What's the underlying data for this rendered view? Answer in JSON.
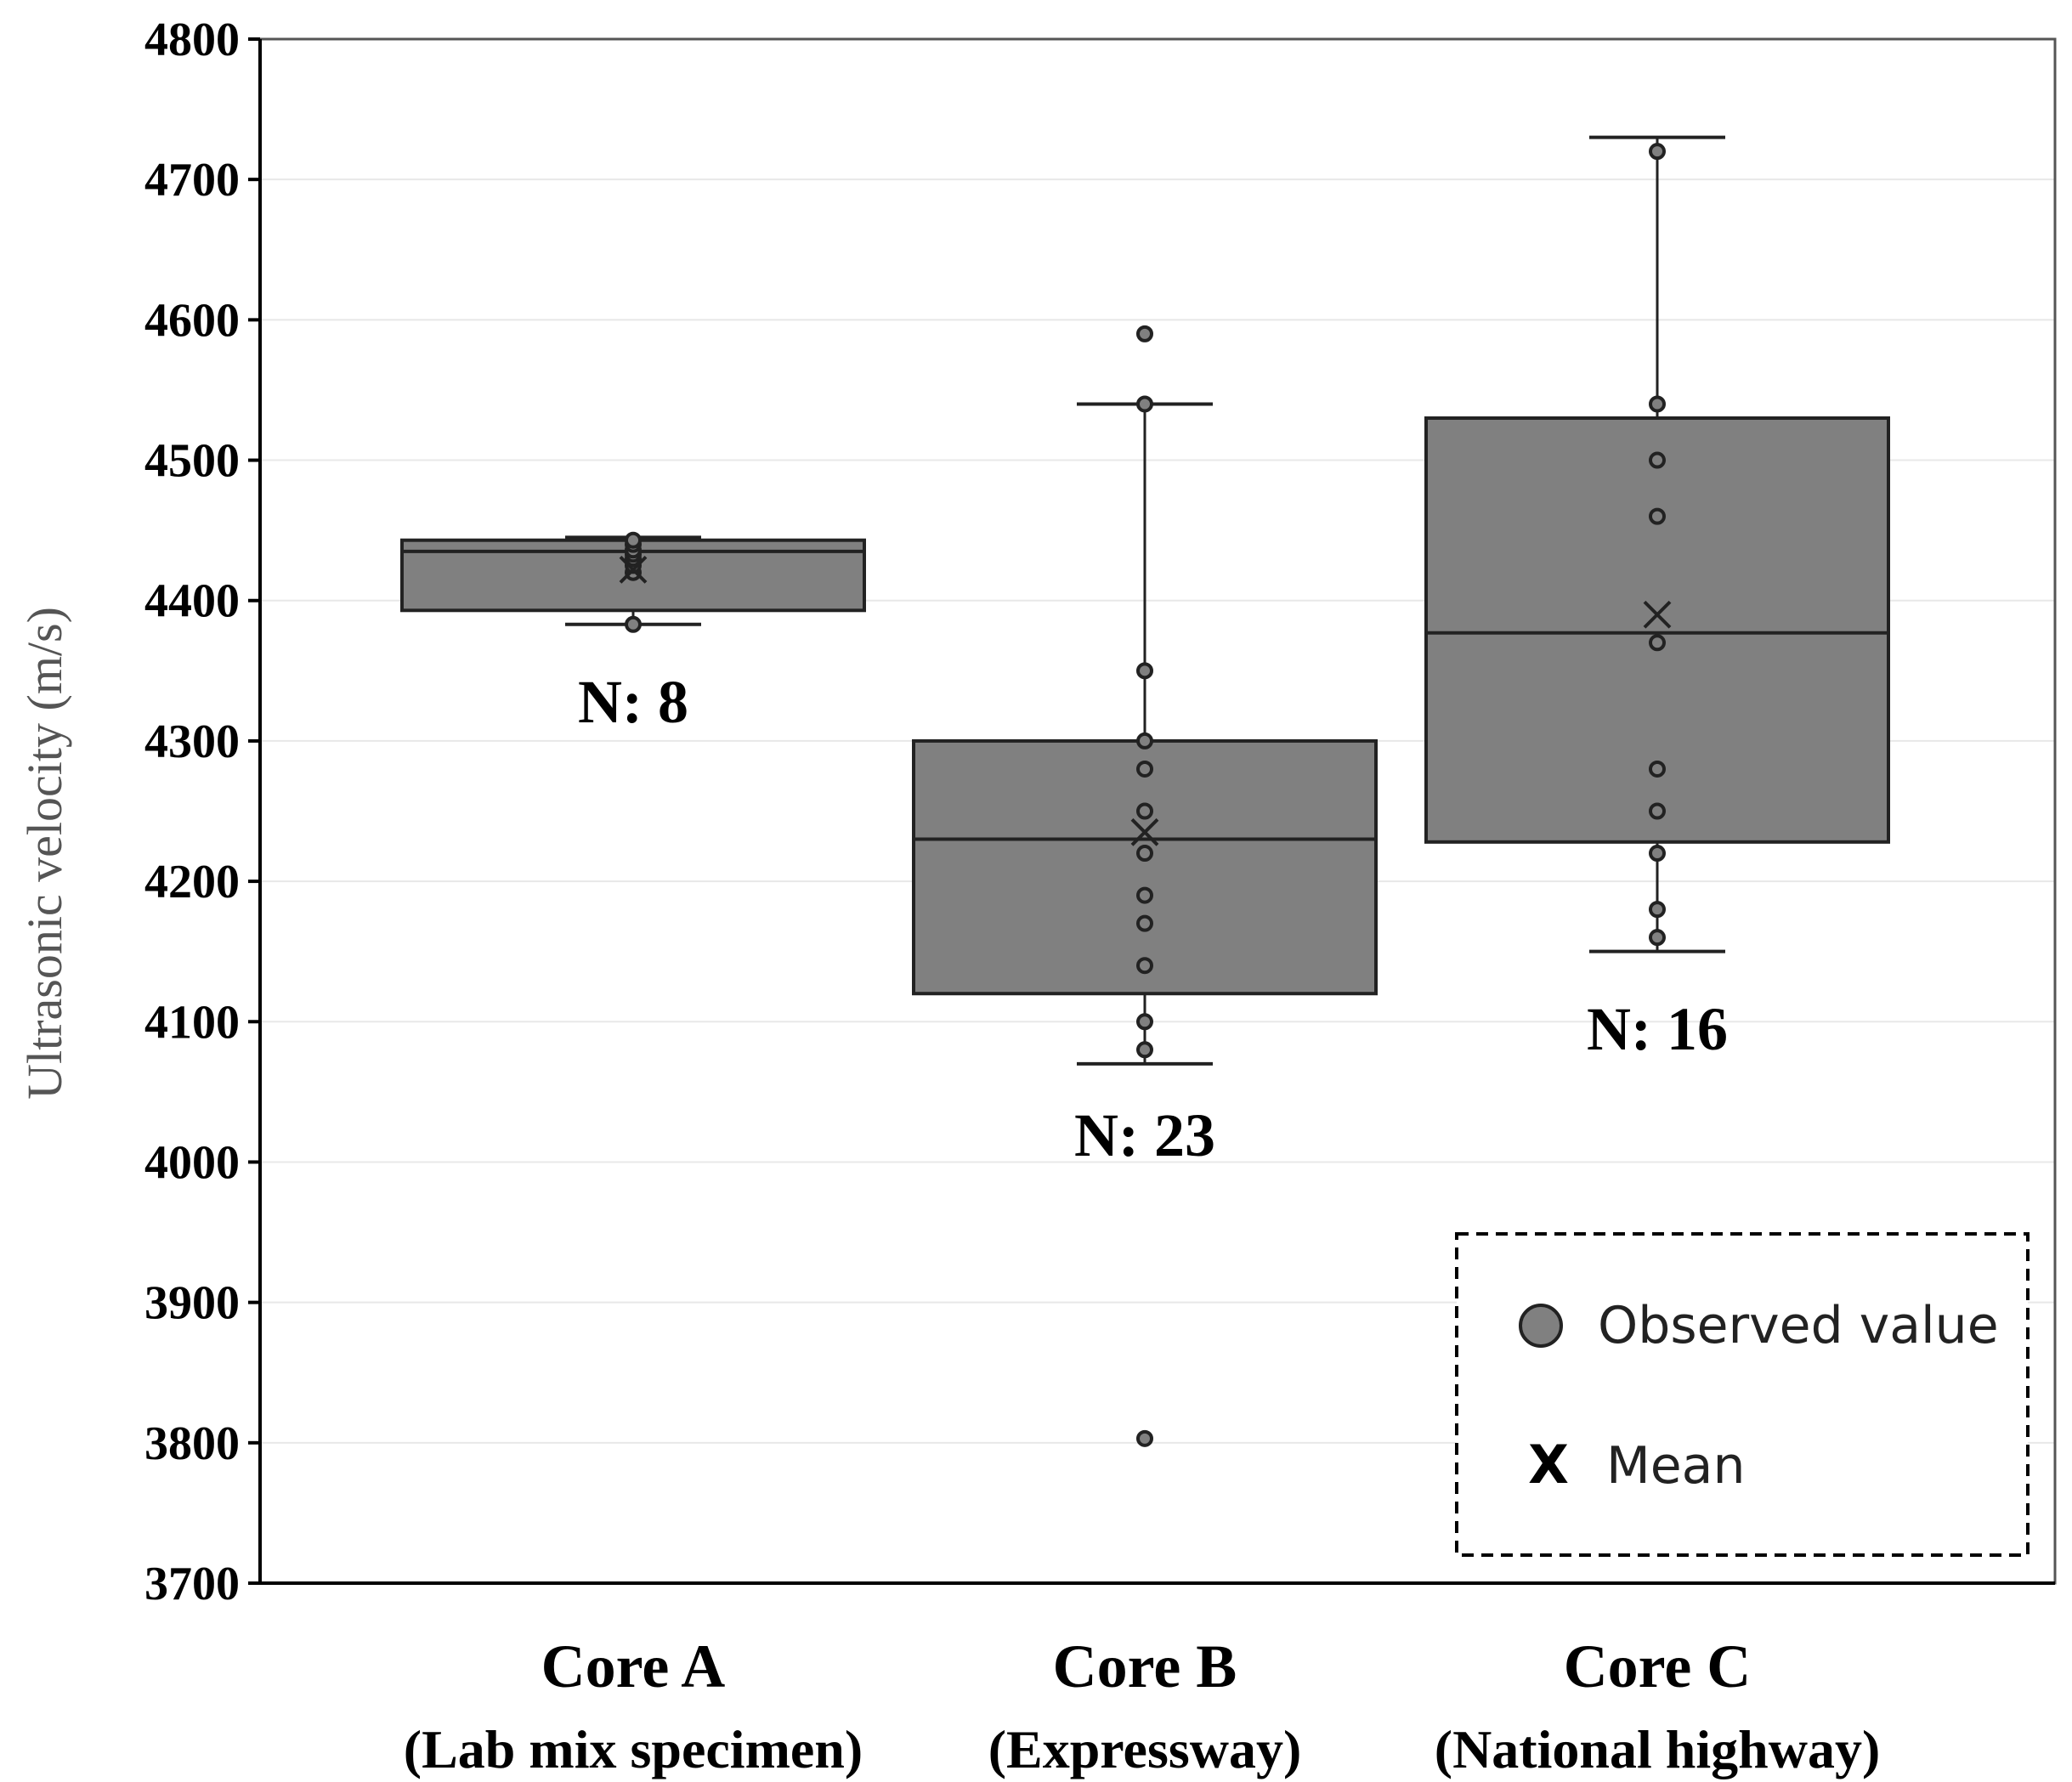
{
  "chart_data": {
    "type": "box",
    "ylabel": "Ultrasonic velocity (m/s)",
    "ylim": [
      3700,
      4800
    ],
    "yticks": [
      3700,
      3800,
      3900,
      4000,
      4100,
      4200,
      4300,
      4400,
      4500,
      4600,
      4700,
      4800
    ],
    "grid": true,
    "legend_placement": "bottom-right",
    "colors": {
      "box_fill": "#808080",
      "stroke": "#222222",
      "grid": "#e8e8e8"
    },
    "legend": [
      {
        "label": "Observed value",
        "marker": "circle"
      },
      {
        "label": "Mean",
        "marker": "x",
        "symbol": "X"
      }
    ],
    "categories": [
      {
        "name": "Core A",
        "subtitle": "(Lab mix specimen)",
        "n_label": "N: 8",
        "whisker_low": 4383,
        "q1": 4393,
        "median": 4435,
        "q3": 4443,
        "whisker_high": 4445,
        "mean": 4422,
        "points": [
          4383,
          4420,
          4425,
          4430,
          4433,
          4436,
          4440,
          4443
        ]
      },
      {
        "name": "Core B",
        "subtitle": "(Expressway)",
        "n_label": "N: 23",
        "whisker_low": 4070,
        "q1": 4120,
        "median": 4230,
        "q3": 4300,
        "whisker_high": 4540,
        "mean": 4235,
        "points": [
          3803,
          4080,
          4100,
          4140,
          4170,
          4190,
          4220,
          4250,
          4280,
          4300,
          4350,
          4540,
          4590
        ]
      },
      {
        "name": "Core C",
        "subtitle": "(National highway)",
        "n_label": "N: 16",
        "whisker_low": 4150,
        "q1": 4228,
        "median": 4377,
        "q3": 4530,
        "whisker_high": 4730,
        "mean": 4390,
        "points": [
          4160,
          4180,
          4220,
          4250,
          4280,
          4370,
          4460,
          4500,
          4540,
          4720
        ]
      }
    ]
  }
}
